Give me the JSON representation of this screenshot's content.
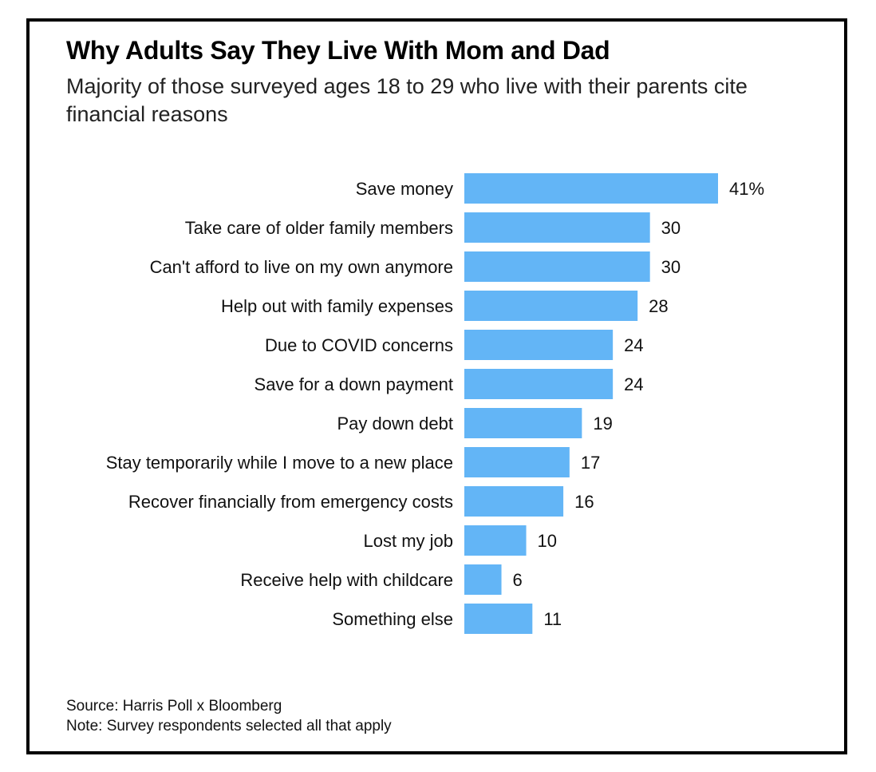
{
  "header": {
    "title": "Why Adults Say They Live With Mom and Dad",
    "subtitle": "Majority of those surveyed ages 18 to 29 who live with their parents cite financial reasons"
  },
  "footer": {
    "source": "Source: Harris Poll x Bloomberg",
    "note": "Note: Survey respondents selected all that apply"
  },
  "chart_data": {
    "type": "bar",
    "orientation": "horizontal",
    "title": "Why Adults Say They Live With Mom and Dad",
    "subtitle": "Majority of those surveyed ages 18 to 29 who live with their parents cite financial reasons",
    "categories": [
      "Save money",
      "Take care of older family members",
      "Can't afford to live on my own anymore",
      "Help out with family expenses",
      "Due to COVID concerns",
      "Save for a down payment",
      "Pay down debt",
      "Stay temporarily while I move to a new place",
      "Recover financially from emergency costs",
      "Lost my job",
      "Receive help with childcare",
      "Something else"
    ],
    "values": [
      41,
      30,
      30,
      28,
      24,
      24,
      19,
      17,
      16,
      10,
      6,
      11
    ],
    "value_labels": [
      "41%",
      "30",
      "30",
      "28",
      "24",
      "24",
      "19",
      "17",
      "16",
      "10",
      "6",
      "11"
    ],
    "unit": "%",
    "bar_color": "#63b5f6",
    "xlim": [
      0,
      41
    ],
    "grid": false,
    "legend": "none"
  }
}
